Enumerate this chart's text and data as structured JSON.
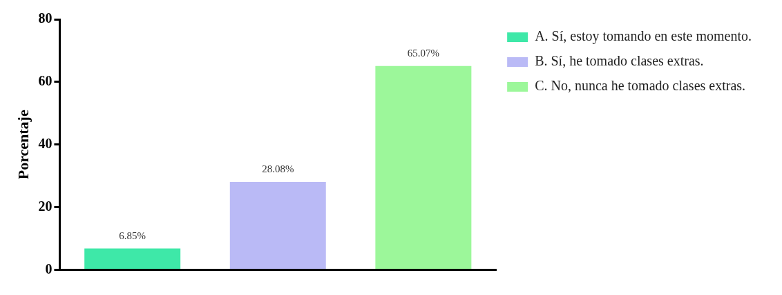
{
  "chart_data": {
    "type": "bar",
    "ylabel": "Porcentaje",
    "categories": [
      null,
      null,
      null
    ],
    "series": [
      {
        "name": "A. Sí, estoy tomando en este momento.",
        "color": "#3ee8a8",
        "values": [
          6.85,
          null,
          null
        ],
        "value_labels": [
          "6.85%",
          null,
          null
        ]
      },
      {
        "name": "B. Sí, he tomado clases extras.",
        "color": "#babaf6",
        "values": [
          null,
          28.08,
          null
        ],
        "value_labels": [
          null,
          "28.08%",
          null
        ]
      },
      {
        "name": "C. No, nunca he tomado clases extras.",
        "color": "#9cf79a",
        "values": [
          null,
          null,
          65.07
        ],
        "value_labels": [
          null,
          null,
          "65.07%"
        ]
      }
    ],
    "ylim": [
      0,
      80
    ],
    "yticks": [
      0,
      20,
      40,
      60,
      80
    ],
    "grid": false,
    "legend": "right"
  }
}
